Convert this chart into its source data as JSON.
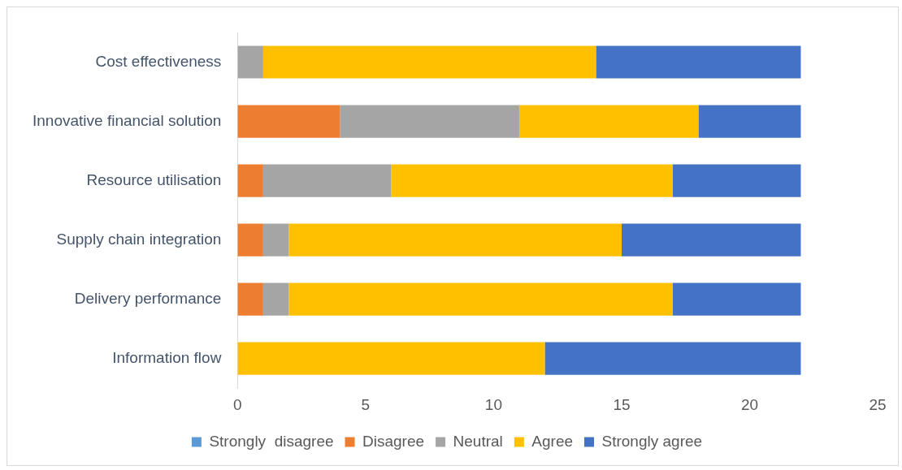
{
  "chart_data": {
    "type": "bar",
    "orientation": "horizontal",
    "stacked": true,
    "categories": [
      "Cost effectiveness",
      "Innovative financial solution",
      "Resource utilisation",
      "Supply chain integration",
      "Delivery performance",
      "Information flow"
    ],
    "series": [
      {
        "name": "Strongly  disagree",
        "color": "#5b9bd5",
        "values": [
          0,
          0,
          0,
          0,
          0,
          0
        ]
      },
      {
        "name": "Disagree",
        "color": "#ed7d31",
        "values": [
          0,
          4,
          1,
          1,
          1,
          0
        ]
      },
      {
        "name": "Neutral",
        "color": "#a5a5a5",
        "values": [
          1,
          7,
          5,
          1,
          1,
          0
        ]
      },
      {
        "name": "Agree",
        "color": "#ffc000",
        "values": [
          13,
          7,
          11,
          13,
          15,
          12
        ]
      },
      {
        "name": "Strongly agree",
        "color": "#4472c4",
        "values": [
          8,
          4,
          5,
          7,
          5,
          10
        ]
      }
    ],
    "xlim": [
      0,
      25
    ],
    "xticks": [
      0,
      5,
      10,
      15,
      20,
      25
    ],
    "grid": false,
    "legend": "bottom"
  }
}
